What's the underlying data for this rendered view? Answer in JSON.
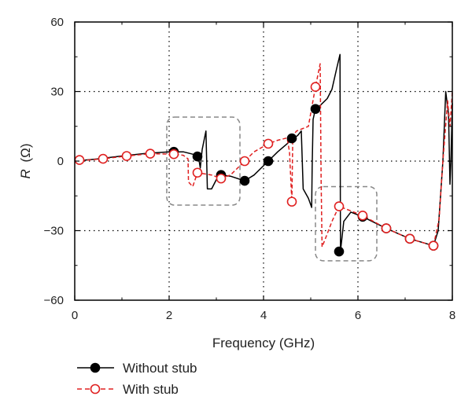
{
  "chart_data": {
    "type": "line",
    "xlabel": "Frequency (GHz)",
    "ylabel_symbol": "R",
    "ylabel_unit": "(Ω)",
    "xlim": [
      0,
      8
    ],
    "ylim": [
      -60,
      60
    ],
    "x_ticks": [
      0,
      2,
      4,
      6,
      8
    ],
    "y_ticks": [
      -60,
      -30,
      0,
      30,
      60
    ],
    "x_tick_labels": [
      "0",
      "2",
      "4",
      "6",
      "8"
    ],
    "y_tick_labels": [
      "−60",
      "−30",
      "0",
      "30",
      "60"
    ],
    "grid": "dotted",
    "legend_position": "bottom-left",
    "series": [
      {
        "name": "Without stub",
        "color": "#000000",
        "line_style": "solid",
        "marker": "filled-circle",
        "points": [
          [
            0,
            0
          ],
          [
            0.5,
            1
          ],
          [
            1.0,
            2.2
          ],
          [
            1.5,
            3.3
          ],
          [
            2.0,
            4.0
          ],
          [
            2.3,
            4.0
          ],
          [
            2.5,
            3.0
          ],
          [
            2.62,
            2.0
          ],
          [
            2.66,
            -3.0
          ],
          [
            2.7,
            5.0
          ],
          [
            2.78,
            13.0
          ],
          [
            2.81,
            -12.0
          ],
          [
            2.9,
            -12.0
          ],
          [
            3.0,
            -8.0
          ],
          [
            3.1,
            -6.0
          ],
          [
            3.3,
            -6.5
          ],
          [
            3.6,
            -8.5
          ],
          [
            3.8,
            -6.0
          ],
          [
            4.0,
            -2.0
          ],
          [
            4.1,
            0
          ],
          [
            4.3,
            4.0
          ],
          [
            4.5,
            7.5
          ],
          [
            4.62,
            9.8
          ],
          [
            4.72,
            11.0
          ],
          [
            4.8,
            13.0
          ],
          [
            4.84,
            -12.0
          ],
          [
            4.95,
            -16.0
          ],
          [
            5.02,
            -20.0
          ],
          [
            5.03,
            -3.0
          ],
          [
            5.05,
            18.0
          ],
          [
            5.1,
            22.5
          ],
          [
            5.2,
            24.0
          ],
          [
            5.35,
            27.0
          ],
          [
            5.45,
            31.0
          ],
          [
            5.55,
            40.0
          ],
          [
            5.62,
            46.0
          ],
          [
            5.63,
            -39.0
          ],
          [
            5.7,
            -26.0
          ],
          [
            5.85,
            -22.0
          ],
          [
            6.1,
            -24.0
          ],
          [
            6.6,
            -29.0
          ],
          [
            7.1,
            -33.5
          ],
          [
            7.6,
            -36.5
          ],
          [
            7.7,
            -30.0
          ],
          [
            7.8,
            0
          ],
          [
            7.86,
            30.0
          ],
          [
            7.92,
            20.0
          ],
          [
            7.95,
            -10.0
          ],
          [
            7.97,
            0
          ],
          [
            8.0,
            25.0
          ]
        ],
        "markers": [
          [
            2.1,
            4.0
          ],
          [
            2.6,
            2.0
          ],
          [
            3.1,
            -6.0
          ],
          [
            3.6,
            -8.5
          ],
          [
            4.1,
            0
          ],
          [
            4.6,
            9.8
          ],
          [
            5.1,
            22.5
          ],
          [
            5.6,
            -39.0
          ],
          [
            6.1,
            -24.0
          ],
          [
            6.6,
            -29.0
          ],
          [
            7.1,
            -33.5
          ],
          [
            7.6,
            -36.5
          ]
        ]
      },
      {
        "name": "With stub",
        "color": "#e02020",
        "line_style": "dashed",
        "marker": "open-circle",
        "points": [
          [
            0,
            0
          ],
          [
            0.6,
            1
          ],
          [
            1.1,
            2.2
          ],
          [
            1.6,
            3.2
          ],
          [
            2.1,
            3.0
          ],
          [
            2.3,
            2.5
          ],
          [
            2.4,
            1.0
          ],
          [
            2.41,
            -9.0
          ],
          [
            2.5,
            -11.0
          ],
          [
            2.6,
            -5.0
          ],
          [
            2.9,
            -6.0
          ],
          [
            3.1,
            -7.5
          ],
          [
            3.3,
            -6.0
          ],
          [
            3.6,
            0
          ],
          [
            3.8,
            4.0
          ],
          [
            4.1,
            7.5
          ],
          [
            4.3,
            9.0
          ],
          [
            4.5,
            10.0
          ],
          [
            4.55,
            4.0
          ],
          [
            4.6,
            -17.5
          ],
          [
            4.62,
            11.0
          ],
          [
            4.7,
            13.0
          ],
          [
            4.95,
            15.0
          ],
          [
            5.1,
            32.0
          ],
          [
            5.2,
            42.0
          ],
          [
            5.22,
            -8.0
          ],
          [
            5.24,
            -37.0
          ],
          [
            5.3,
            -34.0
          ],
          [
            5.45,
            -26.0
          ],
          [
            5.6,
            -19.5
          ],
          [
            6.1,
            -23.5
          ],
          [
            6.6,
            -29.0
          ],
          [
            7.1,
            -33.5
          ],
          [
            7.6,
            -36.5
          ],
          [
            7.72,
            -25.0
          ],
          [
            7.8,
            0
          ],
          [
            7.9,
            26.0
          ],
          [
            7.95,
            15.0
          ],
          [
            8.0,
            30.0
          ]
        ],
        "markers": [
          [
            0.1,
            0.5
          ],
          [
            0.6,
            1.0
          ],
          [
            1.1,
            2.2
          ],
          [
            1.6,
            3.2
          ],
          [
            2.1,
            3.0
          ],
          [
            2.6,
            -5.0
          ],
          [
            3.1,
            -7.5
          ],
          [
            3.6,
            0
          ],
          [
            4.1,
            7.5
          ],
          [
            4.6,
            -17.5
          ],
          [
            5.1,
            32.0
          ],
          [
            5.6,
            -19.5
          ],
          [
            6.1,
            -23.5
          ],
          [
            6.6,
            -29.0
          ],
          [
            7.1,
            -33.5
          ],
          [
            7.6,
            -36.5
          ]
        ]
      }
    ],
    "annotations": [
      {
        "type": "dashed-rounded-box",
        "color": "#888888",
        "x_range": [
          1.95,
          3.5
        ],
        "y_range": [
          -19,
          19
        ]
      },
      {
        "type": "dashed-rounded-box",
        "color": "#888888",
        "x_range": [
          5.1,
          6.4
        ],
        "y_range": [
          -43,
          -11
        ]
      }
    ]
  }
}
